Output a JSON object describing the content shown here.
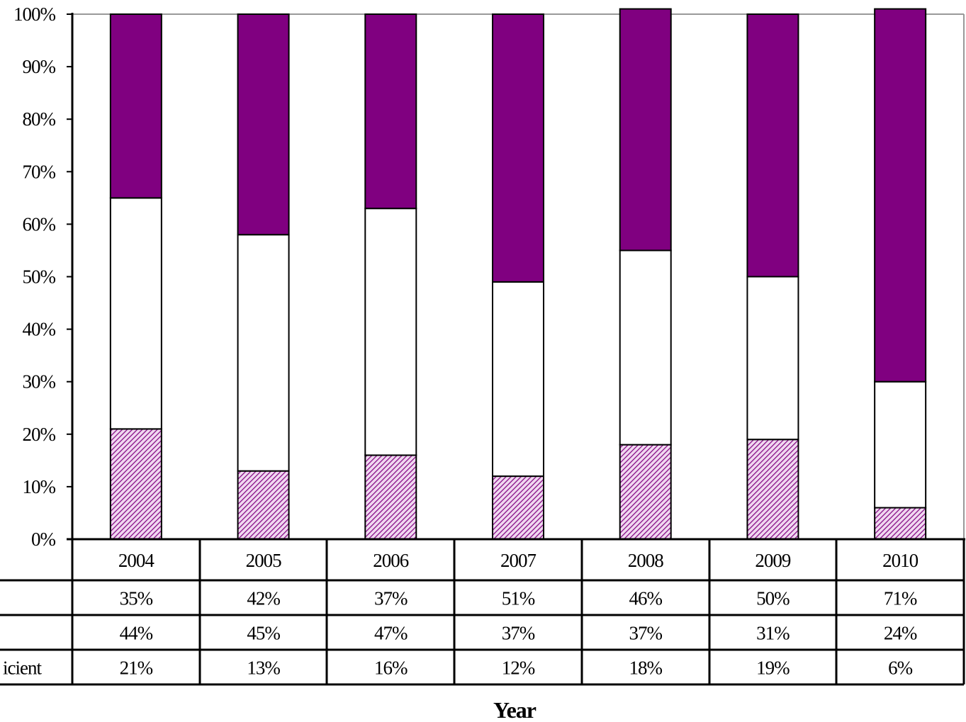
{
  "chart_data": {
    "type": "bar",
    "stacked": true,
    "normalized": true,
    "categories": [
      "2004",
      "2005",
      "2006",
      "2007",
      "2008",
      "2009",
      "2010"
    ],
    "series": [
      {
        "name": "icient",
        "values": [
          21,
          13,
          16,
          12,
          18,
          19,
          6
        ],
        "labels": [
          "21%",
          "13%",
          "16%",
          "12%",
          "18%",
          "19%",
          "6%"
        ],
        "color": "#c080c0",
        "pattern": "diagonal-hatch"
      },
      {
        "name": "",
        "values": [
          44,
          45,
          47,
          37,
          37,
          31,
          24
        ],
        "labels": [
          "44%",
          "45%",
          "47%",
          "37%",
          "37%",
          "31%",
          "24%"
        ],
        "color": "#ffffff"
      },
      {
        "name": "",
        "values": [
          35,
          42,
          37,
          51,
          46,
          50,
          71
        ],
        "labels": [
          "35%",
          "42%",
          "37%",
          "51%",
          "46%",
          "50%",
          "71%"
        ],
        "color": "#800080"
      }
    ],
    "ylim": [
      0,
      100
    ],
    "yticks": [
      "0%",
      "10%",
      "20%",
      "30%",
      "40%",
      "50%",
      "60%",
      "70%",
      "80%",
      "90%",
      "100%"
    ],
    "xlabel": "Year",
    "ylabel": "",
    "table_row_order": [
      2,
      1,
      0
    ],
    "grid": false
  }
}
